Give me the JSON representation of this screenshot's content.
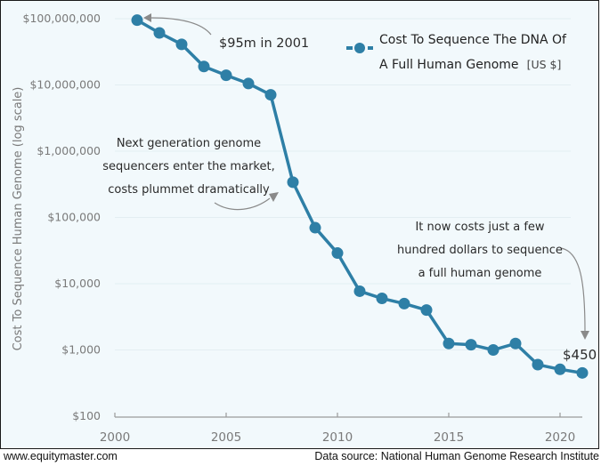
{
  "chart_data": {
    "type": "line",
    "title": "Cost To Sequence The DNA Of A Full Human Genome [US $]",
    "xlabel": "",
    "ylabel": "Cost To Sequence Human Genome (log scale)",
    "yscale": "log",
    "ylim": [
      100,
      100000000
    ],
    "xlim": [
      2000,
      2021
    ],
    "grid": true,
    "legend_position": "top-right",
    "x_ticks": [
      2000,
      2005,
      2010,
      2015,
      2020
    ],
    "x_tick_labels": [
      "2000",
      "2005",
      "2010",
      "2015",
      "2020"
    ],
    "y_ticks": [
      100000000,
      10000000,
      1000000,
      100000,
      10000,
      1000,
      100
    ],
    "y_tick_labels": [
      "$100,000,000",
      "$10,000,000",
      "$1,000,000",
      "$100,000",
      "$10,000",
      "$1,000",
      "$100"
    ],
    "series": [
      {
        "name": "Cost To Sequence The DNA Of A Full Human Genome",
        "unit": "[US $]",
        "color": "#2e7fa6",
        "x": [
          2001,
          2002,
          2003,
          2004,
          2005,
          2006,
          2007,
          2008,
          2009,
          2010,
          2011,
          2012,
          2013,
          2014,
          2015,
          2016,
          2017,
          2018,
          2019,
          2020,
          2021
        ],
        "values": [
          95000000,
          61000000,
          41000000,
          19000000,
          14000000,
          10500000,
          7100000,
          340000,
          70000,
          29000,
          7700,
          6000,
          5000,
          4000,
          1250,
          1200,
          1000,
          1250,
          600,
          510,
          450
        ]
      }
    ],
    "annotations": [
      {
        "id": "start",
        "lines": [
          "$95m in 2001"
        ]
      },
      {
        "id": "nextgen",
        "lines": [
          "Next generation genome",
          "sequencers enter the market,",
          "costs plummet dramatically"
        ]
      },
      {
        "id": "now",
        "lines": [
          "It now costs just a few",
          "hundred dollars to sequence",
          "a full human genome"
        ]
      },
      {
        "id": "end",
        "lines": [
          "$450"
        ]
      }
    ]
  },
  "footer": {
    "left": "www.equitymaster.com",
    "right": "Data source: National Human Genome Research Institute"
  }
}
